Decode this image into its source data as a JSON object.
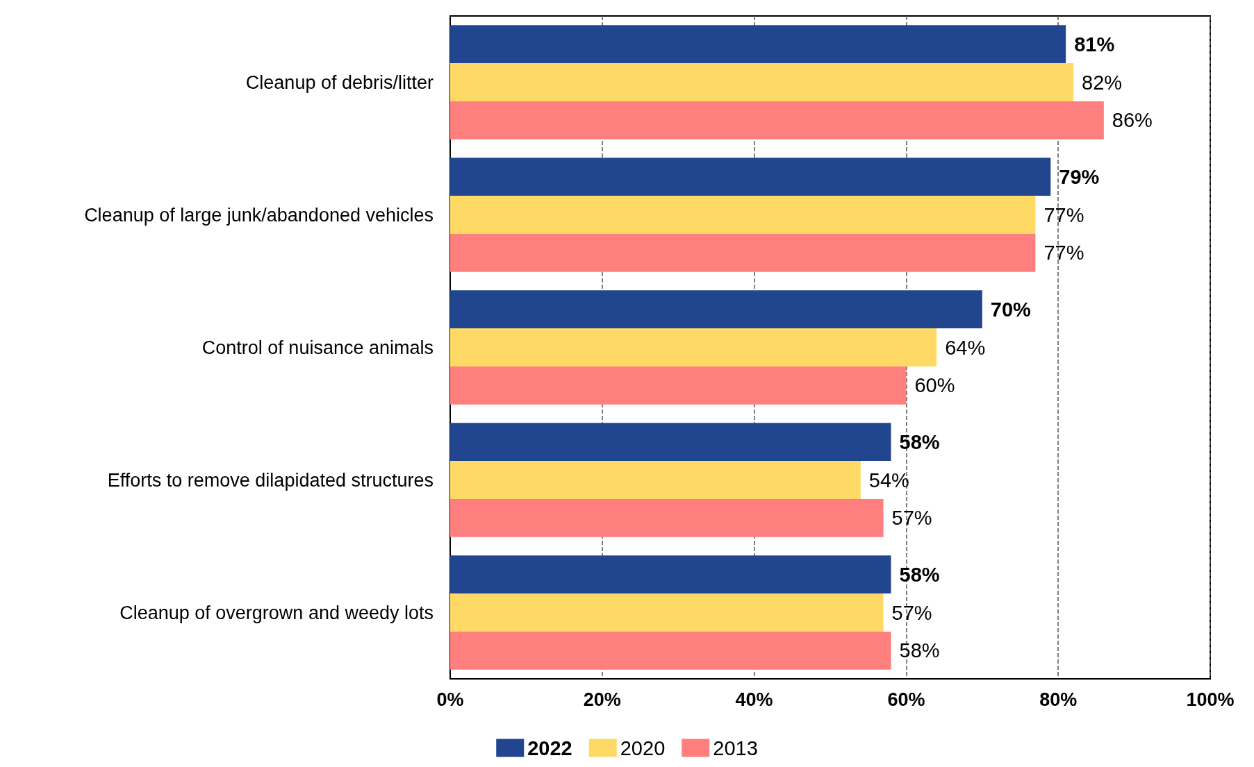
{
  "chart_data": {
    "type": "bar",
    "orientation": "horizontal",
    "categories": [
      "Cleanup of debris/litter",
      "Cleanup of large junk/abandoned vehicles",
      "Control of nuisance animals",
      "Efforts to remove dilapidated structures",
      "Cleanup of overgrown and weedy lots"
    ],
    "series": [
      {
        "name": "2022",
        "color": "#21468f",
        "values": [
          81,
          79,
          70,
          58,
          58
        ],
        "value_labels": [
          "81%",
          "79%",
          "70%",
          "58%",
          "58%"
        ]
      },
      {
        "name": "2020",
        "color": "#ffd966",
        "values": [
          82,
          77,
          64,
          54,
          57
        ],
        "value_labels": [
          "82%",
          "77%",
          "64%",
          "54%",
          "57%"
        ]
      },
      {
        "name": "2013",
        "color": "#ff7f7f",
        "values": [
          86,
          77,
          60,
          57,
          58
        ],
        "value_labels": [
          "86%",
          "77%",
          "60%",
          "57%",
          "58%"
        ]
      }
    ],
    "xlim": [
      0,
      100
    ],
    "xticks": [
      {
        "value": 0,
        "label": "0%"
      },
      {
        "value": 20,
        "label": "20%"
      },
      {
        "value": 40,
        "label": "40%"
      },
      {
        "value": 60,
        "label": "60%"
      },
      {
        "value": 80,
        "label": "80%"
      },
      {
        "value": 100,
        "label": "100%"
      }
    ],
    "grid": "x",
    "legend": "bottom"
  }
}
